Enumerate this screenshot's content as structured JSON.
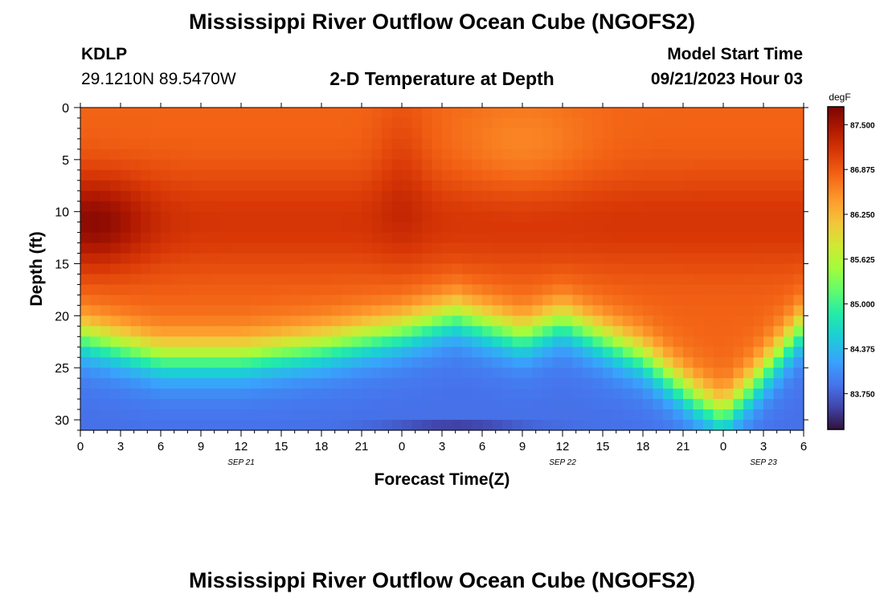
{
  "page": {
    "title_top": "Mississippi River Outflow Ocean Cube (NGOFS2)",
    "title_bottom": "Mississippi River Outflow Ocean Cube (NGOFS2)",
    "station_id": "KDLP",
    "station_coords": "29.1210N  89.5470W",
    "subtitle": "2-D Temperature at Depth",
    "model_start_label": "Model Start Time",
    "model_start_value": "09/21/2023 Hour 03"
  },
  "chart_data": {
    "type": "heatmap",
    "title": "2-D Temperature at Depth",
    "xlabel": "Forecast Time(Z)",
    "ylabel": "Depth (ft)",
    "x_range_hours": [
      0,
      54
    ],
    "x_ticks": [
      {
        "hour": 0,
        "label": "0"
      },
      {
        "hour": 3,
        "label": "3"
      },
      {
        "hour": 6,
        "label": "6"
      },
      {
        "hour": 9,
        "label": "9"
      },
      {
        "hour": 12,
        "label": "12"
      },
      {
        "hour": 15,
        "label": "15"
      },
      {
        "hour": 18,
        "label": "18"
      },
      {
        "hour": 21,
        "label": "21"
      },
      {
        "hour": 24,
        "label": "0"
      },
      {
        "hour": 27,
        "label": "3"
      },
      {
        "hour": 30,
        "label": "6"
      },
      {
        "hour": 33,
        "label": "9"
      },
      {
        "hour": 36,
        "label": "12"
      },
      {
        "hour": 39,
        "label": "15"
      },
      {
        "hour": 42,
        "label": "18"
      },
      {
        "hour": 45,
        "label": "21"
      },
      {
        "hour": 48,
        "label": "0"
      },
      {
        "hour": 51,
        "label": "3"
      },
      {
        "hour": 54,
        "label": "6"
      }
    ],
    "date_labels": [
      {
        "hour": 12,
        "label": "SEP 21"
      },
      {
        "hour": 36,
        "label": "SEP 22"
      },
      {
        "hour": 51,
        "label": "SEP 23"
      }
    ],
    "y_range_ft": [
      0,
      31
    ],
    "y_ticks": [
      0,
      5,
      10,
      15,
      20,
      25,
      30
    ],
    "colorbar": {
      "unit": "degF",
      "min": 83.25,
      "max": 87.75,
      "tick_values": [
        87.5,
        86.875,
        86.25,
        85.625,
        85.0,
        84.375,
        83.75
      ],
      "tick_labels": [
        "87.500",
        "86.875",
        "86.250",
        "85.625",
        "85.000",
        "84.375",
        "83.750"
      ]
    },
    "field_summary": {
      "surface_temp_degF": 86.8,
      "mid_depth_core_degF": 87.2,
      "max_degF": 87.6,
      "bottom_min_degF": 83.3,
      "thermocline_depth_ft": [
        [
          0,
          22
        ],
        [
          6,
          24
        ],
        [
          12,
          24
        ],
        [
          18,
          23
        ],
        [
          24,
          21.5
        ],
        [
          28,
          20
        ],
        [
          33,
          22
        ],
        [
          36,
          20.5
        ],
        [
          42,
          24
        ],
        [
          46,
          28
        ],
        [
          48,
          29.5
        ],
        [
          50,
          27
        ],
        [
          54,
          21
        ]
      ]
    }
  }
}
